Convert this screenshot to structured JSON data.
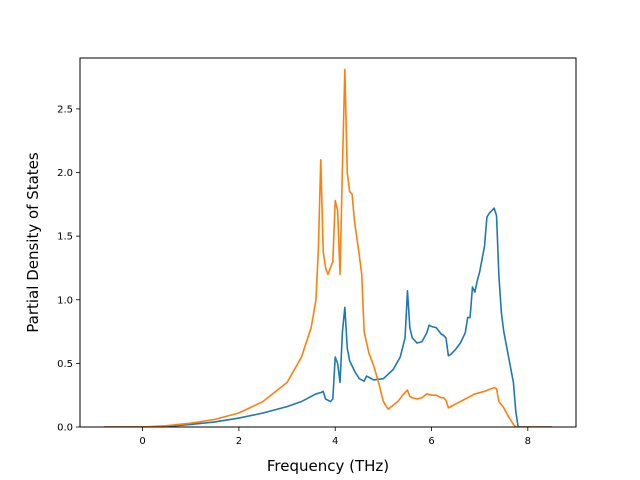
{
  "chart_data": {
    "type": "line",
    "title": "",
    "xlabel": "Frequency (THz)",
    "ylabel": "Partial Density of States",
    "xlim": [
      -1.3,
      9.0
    ],
    "ylim": [
      0.0,
      2.9
    ],
    "xticks": [
      0,
      2,
      4,
      6,
      8
    ],
    "yticks": [
      0.0,
      0.5,
      1.0,
      1.5,
      2.0,
      2.5
    ],
    "xtick_labels": [
      "0",
      "2",
      "4",
      "6",
      "8"
    ],
    "ytick_labels": [
      "0.0",
      "0.5",
      "1.0",
      "1.5",
      "2.0",
      "2.5"
    ],
    "grid": false,
    "legend": "none",
    "series": [
      {
        "color": "#1f77b4",
        "x": [
          -0.8,
          0.0,
          0.5,
          1.0,
          1.5,
          2.0,
          2.5,
          3.0,
          3.3,
          3.5,
          3.6,
          3.7,
          3.75,
          3.8,
          3.9,
          3.95,
          4.0,
          4.05,
          4.1,
          4.15,
          4.2,
          4.25,
          4.3,
          4.4,
          4.5,
          4.6,
          4.65,
          4.7,
          4.8,
          5.0,
          5.2,
          5.35,
          5.45,
          5.5,
          5.55,
          5.6,
          5.7,
          5.8,
          5.9,
          5.95,
          6.0,
          6.1,
          6.2,
          6.25,
          6.3,
          6.35,
          6.4,
          6.5,
          6.6,
          6.7,
          6.75,
          6.8,
          6.85,
          6.9,
          6.95,
          7.0,
          7.1,
          7.15,
          7.2,
          7.25,
          7.3,
          7.35,
          7.4,
          7.45,
          7.5,
          7.6,
          7.7,
          7.75,
          7.8,
          8.5
        ],
        "y": [
          0.0,
          0.0,
          0.005,
          0.02,
          0.04,
          0.07,
          0.11,
          0.16,
          0.2,
          0.24,
          0.26,
          0.27,
          0.28,
          0.22,
          0.2,
          0.22,
          0.55,
          0.5,
          0.35,
          0.75,
          0.94,
          0.62,
          0.52,
          0.44,
          0.38,
          0.36,
          0.4,
          0.39,
          0.37,
          0.38,
          0.45,
          0.55,
          0.7,
          1.07,
          0.78,
          0.7,
          0.66,
          0.67,
          0.74,
          0.8,
          0.79,
          0.78,
          0.73,
          0.72,
          0.7,
          0.56,
          0.57,
          0.61,
          0.66,
          0.74,
          0.86,
          0.86,
          1.1,
          1.06,
          1.15,
          1.22,
          1.42,
          1.65,
          1.68,
          1.7,
          1.72,
          1.66,
          1.18,
          0.9,
          0.75,
          0.55,
          0.35,
          0.12,
          0.0,
          0.0
        ]
      },
      {
        "color": "#ff7f0e",
        "x": [
          -0.8,
          0.0,
          0.5,
          1.0,
          1.5,
          2.0,
          2.5,
          3.0,
          3.3,
          3.5,
          3.6,
          3.65,
          3.7,
          3.75,
          3.8,
          3.85,
          3.9,
          3.95,
          4.0,
          4.05,
          4.1,
          4.15,
          4.2,
          4.25,
          4.3,
          4.35,
          4.4,
          4.5,
          4.55,
          4.6,
          4.7,
          4.8,
          4.9,
          5.0,
          5.1,
          5.2,
          5.3,
          5.4,
          5.5,
          5.55,
          5.6,
          5.7,
          5.8,
          5.9,
          6.0,
          6.1,
          6.2,
          6.25,
          6.3,
          6.35,
          6.4,
          6.5,
          6.7,
          6.9,
          7.1,
          7.3,
          7.35,
          7.4,
          7.5,
          7.6,
          7.7,
          7.75,
          7.8,
          8.5
        ],
        "y": [
          0.0,
          0.0,
          0.01,
          0.03,
          0.06,
          0.11,
          0.2,
          0.35,
          0.55,
          0.78,
          1.0,
          1.4,
          2.1,
          1.38,
          1.25,
          1.2,
          1.25,
          1.3,
          1.78,
          1.7,
          1.2,
          2.05,
          2.81,
          2.0,
          1.85,
          1.83,
          1.62,
          1.35,
          1.2,
          0.75,
          0.58,
          0.48,
          0.35,
          0.2,
          0.14,
          0.17,
          0.2,
          0.25,
          0.29,
          0.24,
          0.23,
          0.22,
          0.23,
          0.26,
          0.25,
          0.25,
          0.23,
          0.23,
          0.21,
          0.15,
          0.16,
          0.18,
          0.22,
          0.26,
          0.28,
          0.31,
          0.3,
          0.2,
          0.15,
          0.08,
          0.02,
          0.0,
          0.0,
          0.0
        ]
      }
    ]
  }
}
